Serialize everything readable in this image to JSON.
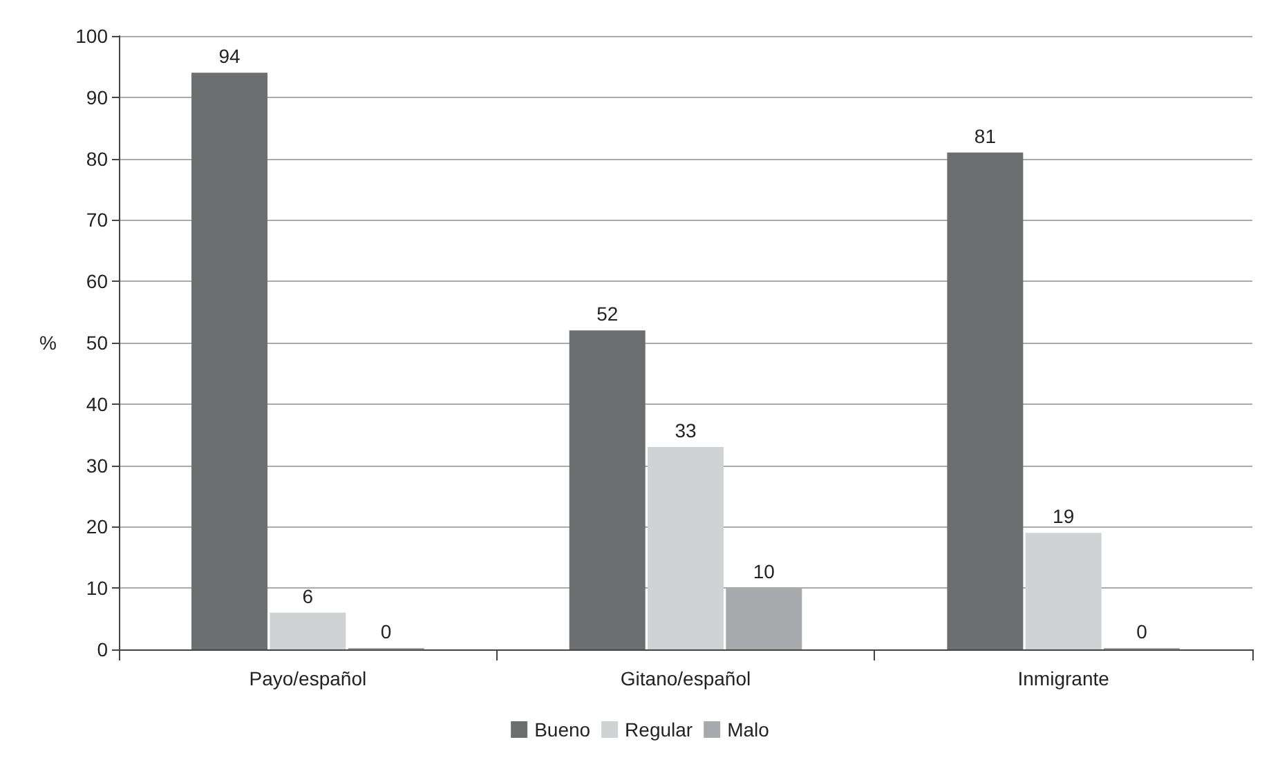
{
  "chart_data": {
    "type": "bar",
    "ylabel": "%",
    "categories": [
      "Payo/español",
      "Gitano/español",
      "Inmigrante"
    ],
    "series": [
      {
        "name": "Bueno",
        "color": "#6d6e70",
        "values": [
          94,
          52,
          81
        ]
      },
      {
        "name": "Regular",
        "color": "#d1d2d4",
        "values": [
          6,
          33,
          19
        ]
      },
      {
        "name": "Malo",
        "color": "#a7a9ac",
        "values": [
          0,
          10,
          0
        ]
      }
    ],
    "ylim": [
      0,
      100
    ],
    "yticks": [
      0,
      10,
      20,
      30,
      40,
      50,
      60,
      70,
      80,
      90,
      100
    ],
    "grid": "y",
    "legend": "bottom",
    "data_labels": true
  }
}
